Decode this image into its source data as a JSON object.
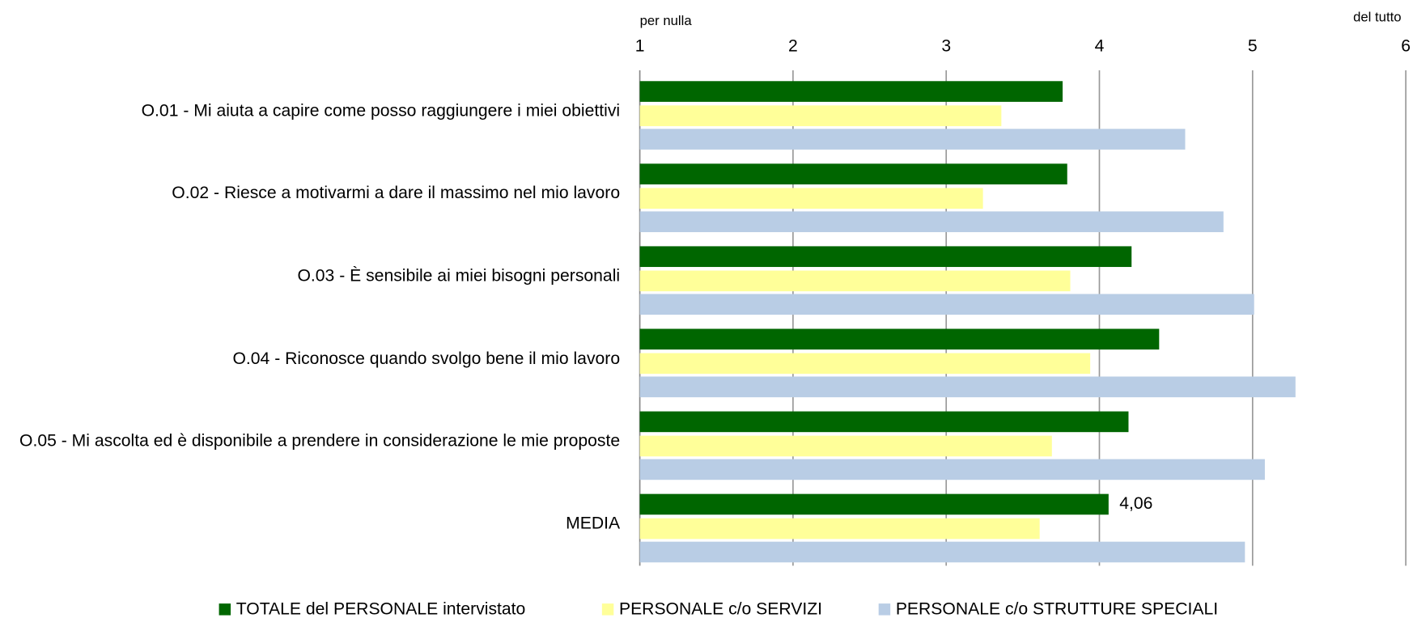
{
  "chart_data": {
    "type": "barh",
    "annotations": [
      "per nulla",
      "del tutto"
    ],
    "categories": [
      "O.01 - Mi aiuta a capire come posso raggiungere i miei obiettivi",
      "O.02 - Riesce a motivarmi a dare il massimo nel mio lavoro",
      "O.03 - È sensibile ai miei bisogni personali",
      "O.04 - Riconosce quando svolgo bene il mio lavoro",
      "O.05 - Mi ascolta ed è disponibile a prendere in considerazione le mie proposte",
      "MEDIA"
    ],
    "series": [
      {
        "name": "TOTALE del PERSONALE intervistato",
        "color": "#006600",
        "values": [
          3.76,
          3.79,
          4.21,
          4.39,
          4.19,
          4.06
        ],
        "value_labels": [
          null,
          null,
          null,
          null,
          null,
          "4,06"
        ]
      },
      {
        "name": "PERSONALE c/o SERVIZI",
        "color": "#ffff99",
        "values": [
          3.36,
          3.24,
          3.81,
          3.94,
          3.69,
          3.61
        ]
      },
      {
        "name": "PERSONALE c/o STRUTTURE SPECIALI",
        "color": "#b9cde5",
        "values": [
          4.56,
          4.81,
          5.01,
          5.28,
          5.08,
          4.95
        ]
      }
    ],
    "xlim": [
      1,
      6
    ],
    "xticks": [
      1,
      2,
      3,
      4,
      5,
      6
    ],
    "grid": true,
    "legend": "bottom"
  }
}
